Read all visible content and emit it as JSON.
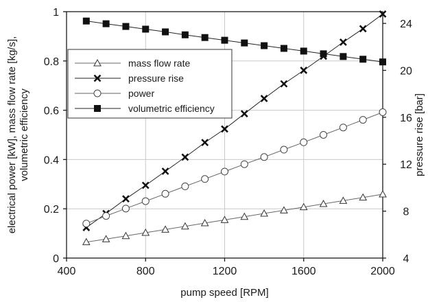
{
  "chart_data": {
    "type": "line",
    "xlabel": "pump speed [RPM]",
    "ylabel_left_lines": [
      "electrical power [kW], mass flow rate [kg/s],",
      "volumetric efficiency"
    ],
    "ylabel_right": "pressure rise [bar]",
    "xlim": [
      400,
      2000
    ],
    "ylim_left": [
      0,
      1
    ],
    "ylim_right": [
      4,
      25
    ],
    "x_ticks": [
      "400",
      "800",
      "1200",
      "1600",
      "2000"
    ],
    "y_left_ticks": [
      "0",
      "0.2",
      "0.4",
      "0.6",
      "0.8",
      "1"
    ],
    "y_right_ticks": [
      "4",
      "8",
      "12",
      "16",
      "20",
      "24"
    ],
    "grid": true,
    "legend_position": "upper-left",
    "x": [
      500,
      600,
      700,
      800,
      900,
      1000,
      1100,
      1200,
      1300,
      1400,
      1500,
      1600,
      1700,
      1800,
      1900,
      2000
    ],
    "series": [
      {
        "name": "mass flow rate",
        "marker": "triangle-open",
        "axis": "left",
        "values": [
          0.065,
          0.077,
          0.09,
          0.103,
          0.116,
          0.129,
          0.142,
          0.155,
          0.168,
          0.181,
          0.194,
          0.207,
          0.22,
          0.233,
          0.246,
          0.259
        ]
      },
      {
        "name": "pressure rise",
        "marker": "x",
        "axis": "right",
        "values": [
          6.6,
          7.8,
          9.05,
          10.2,
          11.4,
          12.6,
          13.85,
          15.0,
          16.3,
          17.6,
          18.85,
          20.0,
          21.2,
          22.4,
          23.55,
          24.8
        ]
      },
      {
        "name": "power",
        "marker": "circle-open",
        "axis": "left",
        "values": [
          0.14,
          0.171,
          0.201,
          0.231,
          0.261,
          0.291,
          0.321,
          0.351,
          0.381,
          0.41,
          0.44,
          0.47,
          0.5,
          0.53,
          0.561,
          0.592
        ]
      },
      {
        "name": "volumetric efficiency",
        "marker": "square-filled",
        "axis": "left",
        "values": [
          0.962,
          0.951,
          0.94,
          0.929,
          0.918,
          0.906,
          0.895,
          0.884,
          0.873,
          0.862,
          0.851,
          0.84,
          0.829,
          0.818,
          0.807,
          0.796
        ]
      }
    ]
  }
}
